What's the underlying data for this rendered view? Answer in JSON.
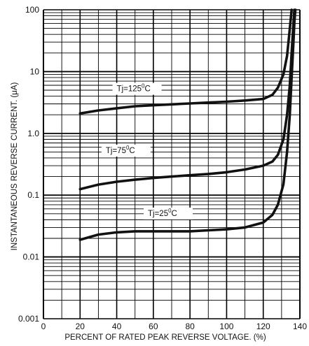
{
  "chart_data": {
    "type": "line",
    "xlabel": "PERCENT OF RATED PEAK REVERSE VOLTAGE. (%)",
    "ylabel": "INSTANTANEOUS REVERSE CURRENT. (μA)",
    "xlim": [
      0,
      140
    ],
    "ylim": [
      0.001,
      100
    ],
    "yscale": "log",
    "grid": true,
    "x_ticks": [
      "0",
      "20",
      "40",
      "60",
      "80",
      "100",
      "120",
      "140"
    ],
    "y_ticks": [
      "0.001",
      "0.01",
      "0.1",
      "1.0",
      "10",
      "100"
    ],
    "series": [
      {
        "name": "Tj=125°C",
        "label_parts": [
          "Tj=125",
          "0",
          "C"
        ],
        "x": [
          20,
          30,
          40,
          50,
          60,
          70,
          80,
          90,
          100,
          110,
          120,
          125,
          128,
          131,
          133,
          134,
          135,
          135.5
        ],
        "y": [
          2.1,
          2.35,
          2.55,
          2.75,
          2.85,
          2.95,
          3.05,
          3.15,
          3.25,
          3.4,
          3.6,
          4.2,
          5.5,
          9,
          18,
          35,
          70,
          100
        ]
      },
      {
        "name": "Tj=75°C",
        "label_parts": [
          "Tj=75",
          "0",
          "C"
        ],
        "x": [
          20,
          30,
          40,
          50,
          60,
          70,
          80,
          90,
          100,
          110,
          120,
          125,
          128,
          131,
          133,
          134.5,
          135.5,
          136.5,
          137
        ],
        "y": [
          0.125,
          0.148,
          0.165,
          0.178,
          0.19,
          0.2,
          0.21,
          0.22,
          0.235,
          0.26,
          0.3,
          0.35,
          0.45,
          0.8,
          2,
          6,
          20,
          60,
          100
        ]
      },
      {
        "name": "Tj=25°C",
        "label_parts": [
          "Tj=25",
          "0",
          "C"
        ],
        "x": [
          20,
          30,
          40,
          50,
          60,
          70,
          80,
          90,
          100,
          110,
          120,
          125,
          128,
          131,
          133,
          134.5,
          135.5,
          136.5,
          137,
          137.5
        ],
        "y": [
          0.019,
          0.023,
          0.025,
          0.026,
          0.026,
          0.026,
          0.026,
          0.027,
          0.028,
          0.03,
          0.036,
          0.048,
          0.07,
          0.15,
          0.5,
          2,
          8,
          30,
          65,
          100
        ]
      }
    ]
  }
}
